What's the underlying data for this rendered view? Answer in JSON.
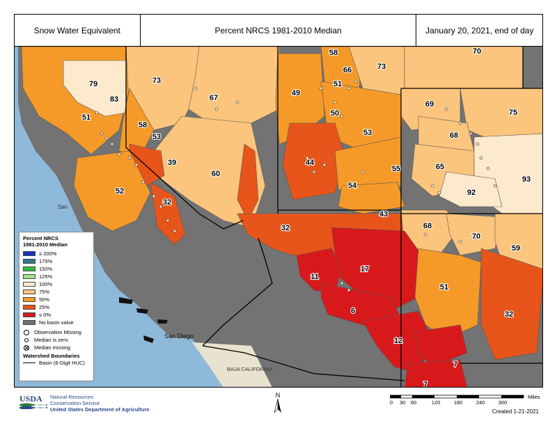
{
  "header": {
    "left": "Snow Water Equivalent",
    "center": "Percent NRCS 1981-2010 Median",
    "right": "January 20, 2021, end of day"
  },
  "colors": {
    "ocean": "#8fb9d9",
    "no_value": "#737373",
    "c0": "#d7191c",
    "c25": "#e8551a",
    "c50": "#f59a28",
    "c75": "#fbc57d",
    "c100": "#fde9cc",
    "c125": "#9fe28a",
    "c150": "#2dbe3a",
    "c175": "#2f7a8a",
    "c200": "#1b2fc7"
  },
  "map_labels": {
    "place_san": "San",
    "place_san_diego": "San Diego",
    "place_baja": "BAJA CALIFORNIA"
  },
  "basins": [
    {
      "value": "58"
    },
    {
      "value": "70"
    },
    {
      "value": "66"
    },
    {
      "value": "73"
    },
    {
      "value": "79"
    },
    {
      "value": "73"
    },
    {
      "value": "83"
    },
    {
      "value": "51"
    },
    {
      "value": "67"
    },
    {
      "value": "49"
    },
    {
      "value": "69"
    },
    {
      "value": "75"
    },
    {
      "value": "50"
    },
    {
      "value": "51"
    },
    {
      "value": "58"
    },
    {
      "value": "53"
    },
    {
      "value": "53"
    },
    {
      "value": "68"
    },
    {
      "value": "44"
    },
    {
      "value": "39"
    },
    {
      "value": "65"
    },
    {
      "value": "60"
    },
    {
      "value": "55"
    },
    {
      "value": "93"
    },
    {
      "value": "52"
    },
    {
      "value": "54"
    },
    {
      "value": "92"
    },
    {
      "value": "32"
    },
    {
      "value": "43"
    },
    {
      "value": "68"
    },
    {
      "value": "32"
    },
    {
      "value": "70"
    },
    {
      "value": "59"
    },
    {
      "value": "17"
    },
    {
      "value": "11"
    },
    {
      "value": "51"
    },
    {
      "value": "6"
    },
    {
      "value": "32"
    },
    {
      "value": "12"
    },
    {
      "value": "7"
    },
    {
      "value": "7"
    }
  ],
  "legend": {
    "title_line1": "Percent NRCS",
    "title_line2": "1981-2010 Median",
    "classes": [
      {
        "label": "≥ 200%",
        "color": "#1b2fc7"
      },
      {
        "label": "175%",
        "color": "#2f7a8a"
      },
      {
        "label": "150%",
        "color": "#2dbe3a"
      },
      {
        "label": "125%",
        "color": "#9fe28a"
      },
      {
        "label": "100%",
        "color": "#fde9cc"
      },
      {
        "label": "75%",
        "color": "#fbc57d"
      },
      {
        "label": "50%",
        "color": "#f59a28"
      },
      {
        "label": "25%",
        "color": "#e8551a"
      },
      {
        "label": "≤ 0%",
        "color": "#d7191c"
      },
      {
        "label": "No basin value",
        "color": "#737373"
      }
    ],
    "obs_missing": "Observation Missing",
    "median_zero": "Median is zero",
    "median_missing": "Median missing",
    "boundaries_title": "Watershed Boundaries",
    "basin_label": "Basin (6-Digit HUC)"
  },
  "footer": {
    "logo_text": "USDA",
    "agency_line1": "Natural Resources",
    "agency_line2": "Conservation Service",
    "department": "United States Department of Agriculture",
    "north": "N",
    "scale_ticks": [
      "0",
      "30",
      "60",
      "120",
      "180",
      "240",
      "300"
    ],
    "scale_unit": "Miles",
    "created": "Created 1-21-2021"
  }
}
